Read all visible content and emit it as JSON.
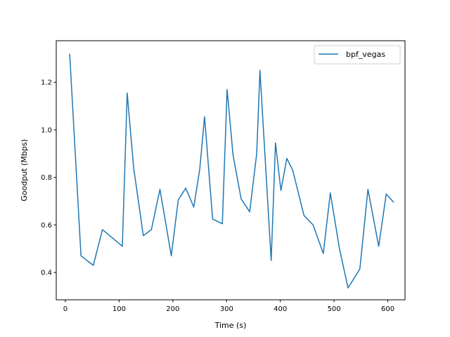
{
  "chart_data": {
    "type": "line",
    "title": "",
    "xlabel": "Time (s)",
    "ylabel": "Goodput (Mbps)",
    "xlim": [
      -17,
      632
    ],
    "ylim": [
      0.285,
      1.375
    ],
    "xticks": [
      0,
      100,
      200,
      300,
      400,
      500,
      600
    ],
    "yticks": [
      0.4,
      0.6,
      0.8,
      1.0,
      1.2
    ],
    "ytick_labels": [
      "0.4",
      "0.6",
      "0.8",
      "1.0",
      "1.2"
    ],
    "grid": false,
    "legend_position": "top-right",
    "series": [
      {
        "name": "bpf_vegas",
        "color": "#1f77b4",
        "x": [
          8,
          29,
          52,
          69,
          85,
          106,
          115,
          127,
          145,
          160,
          176,
          197,
          210,
          224,
          239,
          250,
          259,
          274,
          292,
          301,
          312,
          327,
          343,
          356,
          362,
          383,
          391,
          401,
          412,
          423,
          444,
          461,
          480,
          493,
          510,
          526,
          548,
          563,
          583,
          597,
          611
        ],
        "y": [
          1.32,
          0.47,
          0.43,
          0.58,
          0.55,
          0.51,
          1.155,
          0.84,
          0.555,
          0.58,
          0.75,
          0.47,
          0.705,
          0.755,
          0.675,
          0.835,
          1.055,
          0.625,
          0.605,
          1.17,
          0.895,
          0.71,
          0.655,
          0.9,
          1.25,
          0.45,
          0.945,
          0.745,
          0.88,
          0.83,
          0.64,
          0.6,
          0.48,
          0.735,
          0.5,
          0.335,
          0.415,
          0.75,
          0.51,
          0.73,
          0.695
        ]
      }
    ]
  }
}
